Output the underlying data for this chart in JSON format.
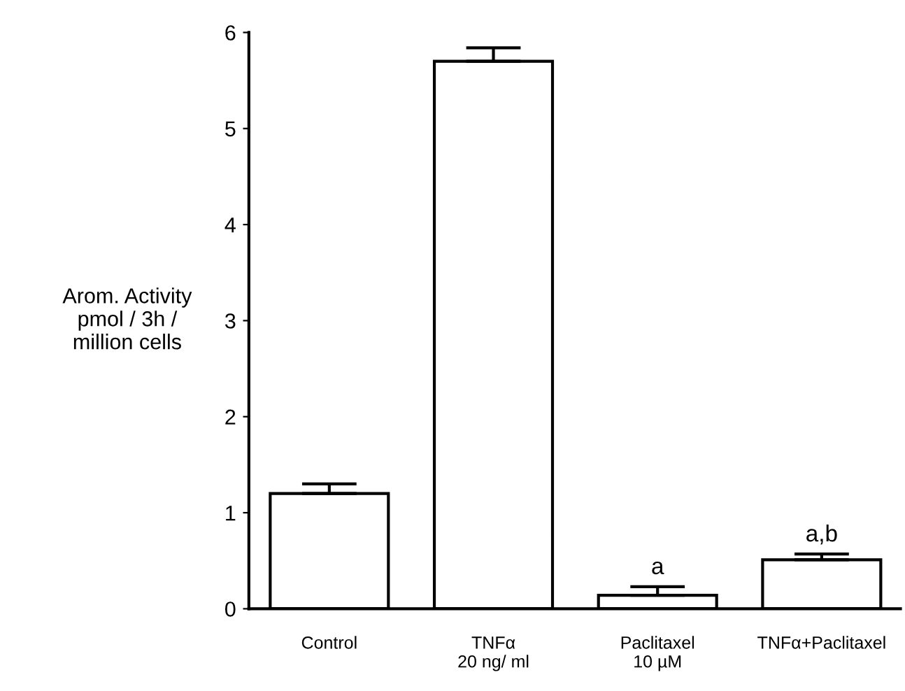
{
  "chart_data": {
    "type": "bar",
    "ylabel": "Arom. Activity\npmol / 3h /\nmillion cells",
    "categories": [
      "Control",
      "TNFα\n20 ng/ ml",
      "Paclitaxel\n10 µM",
      "TNFα+Paclitaxel"
    ],
    "values": [
      1.2,
      5.7,
      0.14,
      0.51
    ],
    "errors": [
      0.1,
      0.14,
      0.09,
      0.06
    ],
    "color": "#ffffff",
    "ylim": [
      0,
      6
    ],
    "yticks": [
      0,
      1,
      2,
      3,
      4,
      5,
      6
    ],
    "grid": false,
    "annotations": [
      {
        "text": "a",
        "x": "Paclitaxel\n10 µM",
        "y": 0.23
      },
      {
        "text": "a,b",
        "x": "TNFα+Paclitaxel",
        "y": 0.57
      }
    ]
  }
}
